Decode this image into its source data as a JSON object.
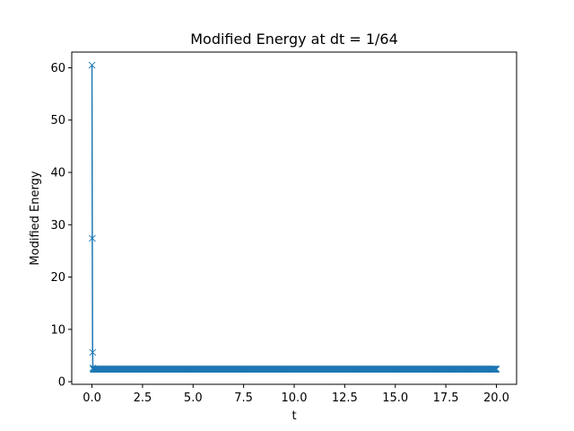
{
  "chart_data": {
    "type": "line",
    "title": "Modified Energy at dt = 1/64",
    "xlabel": "t",
    "ylabel": "Modified Energy",
    "xlim": [
      -1.0,
      21.0
    ],
    "ylim": [
      -0.5,
      63.0
    ],
    "grid": false,
    "legend": "none",
    "marker": "x",
    "x_ticks": [
      0.0,
      2.5,
      5.0,
      7.5,
      10.0,
      12.5,
      15.0,
      17.5,
      20.0
    ],
    "x_tick_labels": [
      "0.0",
      "2.5",
      "5.0",
      "7.5",
      "10.0",
      "12.5",
      "15.0",
      "17.5",
      "20.0"
    ],
    "y_ticks": [
      0,
      10,
      20,
      30,
      40,
      50,
      60
    ],
    "y_tick_labels": [
      "0",
      "10",
      "20",
      "30",
      "40",
      "50",
      "60"
    ],
    "series": [
      {
        "color": "#1f77b4",
        "initial_points": [
          {
            "x": 0.0,
            "y": 60.5
          },
          {
            "x": 0.015625,
            "y": 27.4
          },
          {
            "x": 0.03125,
            "y": 5.6
          },
          {
            "x": 0.046875,
            "y": 2.6
          }
        ],
        "steady_state": {
          "x_start": 0.0625,
          "x_end": 20.0,
          "dt": 0.015625,
          "y": 2.4
        }
      }
    ]
  }
}
